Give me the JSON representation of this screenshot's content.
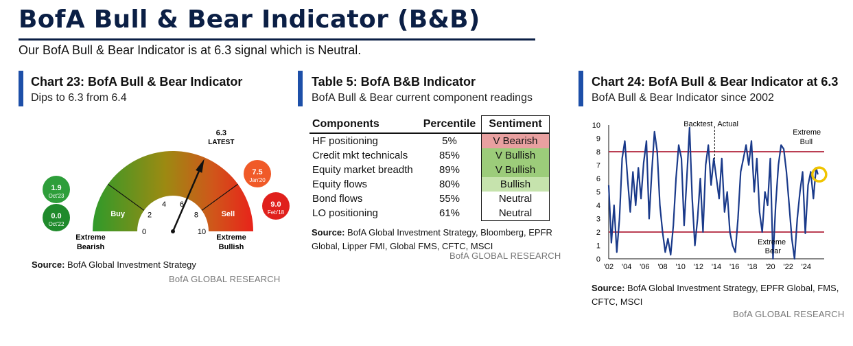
{
  "header": {
    "title": "BofA Bull & Bear Indicator (B&B)",
    "subtitle": "Our BofA Bull & Bear Indicator is at 6.3 signal which is Neutral."
  },
  "colors": {
    "brand": "#0b1f45",
    "accent": "#1d4fa8",
    "line": "#1a3a8a",
    "threshold": "#b0223a",
    "highlight": "#f0c400"
  },
  "chart23": {
    "title": "Chart 23: BofA Bull & Bear Indicator",
    "subtitle": "Dips to 6.3 from 6.4",
    "source_label": "Source:",
    "source_text": "BofA Global Investment Strategy",
    "research": "BofA GLOBAL RESEARCH"
  },
  "table5": {
    "title": "Table 5: BofA B&B Indicator",
    "subtitle": "BofA Bull & Bear current component readings",
    "headers": [
      "Components",
      "Percentile",
      "Sentiment"
    ],
    "rows": [
      {
        "component": "HF positioning",
        "percentile": "5%",
        "sentiment": "V Bearish",
        "color": "#e8a0a0"
      },
      {
        "component": "Credit mkt technicals",
        "percentile": "85%",
        "sentiment": "V Bullish",
        "color": "#9ccc7a"
      },
      {
        "component": "Equity market breadth",
        "percentile": "89%",
        "sentiment": "V Bullish",
        "color": "#9ccc7a"
      },
      {
        "component": "Equity flows",
        "percentile": "80%",
        "sentiment": "Bullish",
        "color": "#c6e3ad"
      },
      {
        "component": "Bond flows",
        "percentile": "55%",
        "sentiment": "Neutral",
        "color": "#ffffff"
      },
      {
        "component": "LO positioning",
        "percentile": "61%",
        "sentiment": "Neutral",
        "color": "#ffffff"
      }
    ],
    "source_label": "Source:",
    "source_text_1": "BofA Global Investment Strategy, Bloomberg, EPFR",
    "source_text_2": "Global, Lipper FMI, Global FMS, CFTC, MSCI",
    "research": "BofA GLOBAL RESEARCH"
  },
  "chart24": {
    "title": "Chart 24: BofA Bull & Bear Indicator at 6.3",
    "subtitle": "BofA Bull & Bear Indicator since 2002",
    "source_label": "Source:",
    "source_text_1": "BofA Global Investment Strategy, EPFR Global, FMS,",
    "source_text_2": "CFTC, MSCI",
    "research": "BofA GLOBAL RESEARCH"
  },
  "chart_data": [
    {
      "type": "gauge",
      "title": "Chart 23: BofA Bull & Bear Indicator",
      "range": [
        0,
        10
      ],
      "ticks": [
        0,
        2,
        4,
        6,
        8,
        10
      ],
      "current": {
        "value": 6.3,
        "label": "6.3",
        "caption": "LATEST"
      },
      "zones": [
        {
          "label": "Buy",
          "from": 0,
          "to": 2
        },
        {
          "label": "Sell",
          "from": 8,
          "to": 10
        }
      ],
      "end_labels": {
        "low": [
          "Extreme",
          "Bearish"
        ],
        "high": [
          "Extreme",
          "Bullish"
        ]
      },
      "markers": [
        {
          "value": "1.9",
          "date": "Oct'23",
          "color": "#2e9e3a"
        },
        {
          "value": "0.0",
          "date": "Oct'22",
          "color": "#1f8a2b"
        },
        {
          "value": "7.5",
          "date": "Jan'20",
          "color": "#f05a28"
        },
        {
          "value": "9.0",
          "date": "Feb'18",
          "color": "#e0201c"
        }
      ]
    },
    {
      "type": "line",
      "title": "Chart 24: BofA Bull & Bear Indicator at 6.3",
      "xlabel": "",
      "ylabel": "",
      "xlim": [
        2002,
        2026
      ],
      "ylim": [
        0,
        10
      ],
      "x_ticks": [
        "'02",
        "'04",
        "'06",
        "'08",
        "'10",
        "'12",
        "'14",
        "'16",
        "'18",
        "'20",
        "'22",
        "'24"
      ],
      "y_ticks": [
        0,
        1,
        2,
        3,
        4,
        5,
        6,
        7,
        8,
        9,
        10
      ],
      "thresholds": [
        2,
        8
      ],
      "divider_x": 2013.8,
      "annotations": {
        "backtest": "Backtest",
        "actual": "Actual",
        "bull": [
          "Extreme",
          "Bull"
        ],
        "bear": [
          "Extreme",
          "Bear"
        ]
      },
      "latest": {
        "x": 2025.3,
        "y": 6.3
      },
      "series": [
        {
          "name": "BofA Bull & Bear Indicator",
          "x": [
            2002.0,
            2002.3,
            2002.6,
            2002.9,
            2003.2,
            2003.5,
            2003.8,
            2004.1,
            2004.4,
            2004.7,
            2005.0,
            2005.3,
            2005.6,
            2005.9,
            2006.2,
            2006.5,
            2006.8,
            2007.1,
            2007.4,
            2007.7,
            2008.0,
            2008.3,
            2008.6,
            2008.9,
            2009.2,
            2009.5,
            2009.8,
            2010.1,
            2010.4,
            2010.7,
            2011.0,
            2011.3,
            2011.6,
            2011.9,
            2012.2,
            2012.5,
            2012.8,
            2013.1,
            2013.4,
            2013.7,
            2014.0,
            2014.3,
            2014.6,
            2014.9,
            2015.2,
            2015.5,
            2015.8,
            2016.1,
            2016.4,
            2016.7,
            2017.0,
            2017.3,
            2017.6,
            2017.9,
            2018.2,
            2018.5,
            2018.8,
            2019.1,
            2019.4,
            2019.7,
            2020.0,
            2020.3,
            2020.6,
            2020.9,
            2021.2,
            2021.5,
            2021.8,
            2022.1,
            2022.4,
            2022.7,
            2023.0,
            2023.3,
            2023.6,
            2023.9,
            2024.2,
            2024.5,
            2024.8,
            2025.1,
            2025.3
          ],
          "values": [
            5.5,
            1.2,
            4.0,
            0.5,
            3.0,
            7.5,
            8.8,
            6.0,
            3.5,
            6.5,
            4.0,
            6.8,
            4.5,
            7.2,
            8.8,
            3.0,
            6.5,
            9.5,
            8.0,
            4.0,
            2.0,
            0.5,
            1.5,
            0.3,
            2.5,
            6.0,
            8.5,
            7.5,
            2.5,
            6.0,
            9.8,
            4.5,
            1.0,
            3.0,
            6.0,
            2.0,
            7.0,
            8.5,
            5.5,
            7.5,
            6.0,
            4.5,
            7.5,
            3.5,
            5.0,
            2.0,
            1.0,
            0.5,
            3.0,
            6.5,
            7.5,
            8.5,
            7.0,
            8.8,
            5.0,
            7.5,
            3.5,
            2.0,
            5.0,
            4.0,
            7.5,
            0.0,
            4.0,
            7.0,
            8.5,
            8.2,
            6.5,
            4.0,
            1.5,
            0.0,
            3.0,
            5.0,
            6.5,
            1.9,
            5.5,
            6.5,
            4.5,
            6.8,
            6.3
          ]
        }
      ]
    }
  ]
}
